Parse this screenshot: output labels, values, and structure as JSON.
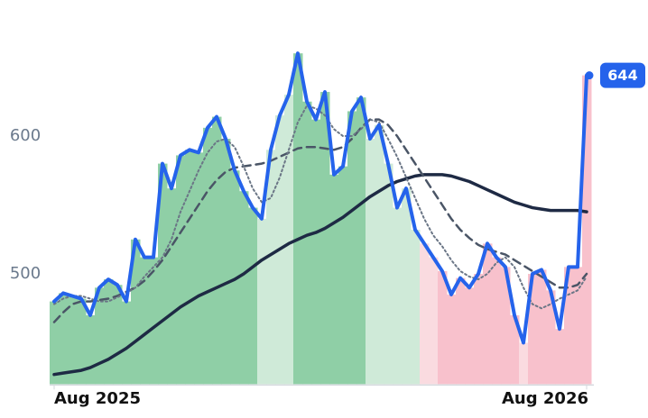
{
  "chart_data": {
    "type": "line",
    "xticks": [
      {
        "value": 0,
        "label": "Aug 2025"
      },
      {
        "value": 59,
        "label": "Aug 2026"
      }
    ],
    "ylim": [
      420,
      690
    ],
    "yticks": [
      500,
      600
    ],
    "area_colors": [
      "#8fcfa6",
      "#8fcfa6",
      "#8fcfa6",
      "#8fcfa6",
      "#8fcfa6",
      "#8fcfa6",
      "#8fcfa6",
      "#8fcfa6",
      "#8fcfa6",
      "#8fcfa6",
      "#8fcfa6",
      "#8fcfa6",
      "#8fcfa6",
      "#8fcfa6",
      "#8fcfa6",
      "#8fcfa6",
      "#8fcfa6",
      "#8fcfa6",
      "#8fcfa6",
      "#8fcfa6",
      "#8fcfa6",
      "#8fcfa6",
      "#8fcfa6",
      "#cfead8",
      "#cfead8",
      "#cfead8",
      "#cfead8",
      "#8fcfa6",
      "#8fcfa6",
      "#8fcfa6",
      "#8fcfa6",
      "#8fcfa6",
      "#8fcfa6",
      "#8fcfa6",
      "#8fcfa6",
      "#cfead8",
      "#cfead8",
      "#cfead8",
      "#cfead8",
      "#cfead8",
      "#cfead8",
      "#fadbe0",
      "#fadbe0",
      "#f8c1cc",
      "#f8c1cc",
      "#f8c1cc",
      "#f8c1cc",
      "#f8c1cc",
      "#f8c1cc",
      "#f8c1cc",
      "#f8c1cc",
      "#f8c1cc",
      "#fadbe0",
      "#f8c1cc",
      "#f8c1cc",
      "#f8c1cc",
      "#f8c1cc",
      "#f8c1cc",
      "#f8c1cc",
      "#f8c1cc"
    ],
    "series": [
      {
        "color": "#2563eb",
        "style": "solid",
        "width": 4,
        "values": [
          480,
          486,
          484,
          482,
          470,
          490,
          496,
          492,
          480,
          525,
          512,
          512,
          580,
          562,
          586,
          590,
          588,
          606,
          614,
          598,
          575,
          560,
          548,
          540,
          590,
          615,
          630,
          660,
          625,
          612,
          632,
          572,
          578,
          618,
          628,
          598,
          608,
          580,
          548,
          562,
          532,
          522,
          512,
          502,
          485,
          497,
          490,
          500,
          522,
          512,
          505,
          470,
          450,
          500,
          503,
          488,
          460,
          505,
          505,
          644
        ]
      },
      {
        "color": "#6b7686",
        "style": "dotted",
        "width": 2,
        "values": [
          478,
          482,
          484,
          484,
          482,
          480,
          480,
          483,
          486,
          490,
          498,
          505,
          512,
          525,
          545,
          560,
          575,
          588,
          596,
          598,
          592,
          578,
          562,
          552,
          555,
          570,
          590,
          610,
          622,
          620,
          615,
          605,
          600,
          600,
          605,
          612,
          610,
          598,
          585,
          570,
          555,
          540,
          528,
          520,
          510,
          502,
          498,
          496,
          500,
          508,
          512,
          505,
          490,
          478,
          475,
          478,
          482,
          485,
          488,
          498
        ]
      },
      {
        "color": "#4a5566",
        "style": "dashed",
        "width": 2.5,
        "values": [
          465,
          472,
          478,
          480,
          480,
          481,
          482,
          484,
          487,
          490,
          495,
          502,
          510,
          520,
          530,
          540,
          550,
          560,
          568,
          574,
          577,
          578,
          579,
          580,
          582,
          585,
          588,
          591,
          592,
          592,
          591,
          590,
          592,
          598,
          606,
          612,
          612,
          608,
          600,
          590,
          580,
          570,
          560,
          550,
          540,
          532,
          526,
          521,
          518,
          516,
          514,
          510,
          506,
          502,
          498,
          494,
          490,
          490,
          492,
          500
        ]
      },
      {
        "color": "#1e2a44",
        "style": "solid",
        "width": 3.5,
        "values": [
          427,
          428,
          429,
          430,
          432,
          435,
          438,
          442,
          446,
          451,
          456,
          461,
          466,
          471,
          476,
          480,
          484,
          487,
          490,
          493,
          496,
          500,
          505,
          510,
          514,
          518,
          522,
          525,
          528,
          530,
          533,
          537,
          541,
          546,
          551,
          556,
          560,
          564,
          567,
          569,
          571,
          572,
          572,
          572,
          571,
          569,
          567,
          564,
          561,
          558,
          555,
          552,
          550,
          548,
          547,
          546,
          546,
          546,
          546,
          545
        ]
      }
    ]
  }
}
